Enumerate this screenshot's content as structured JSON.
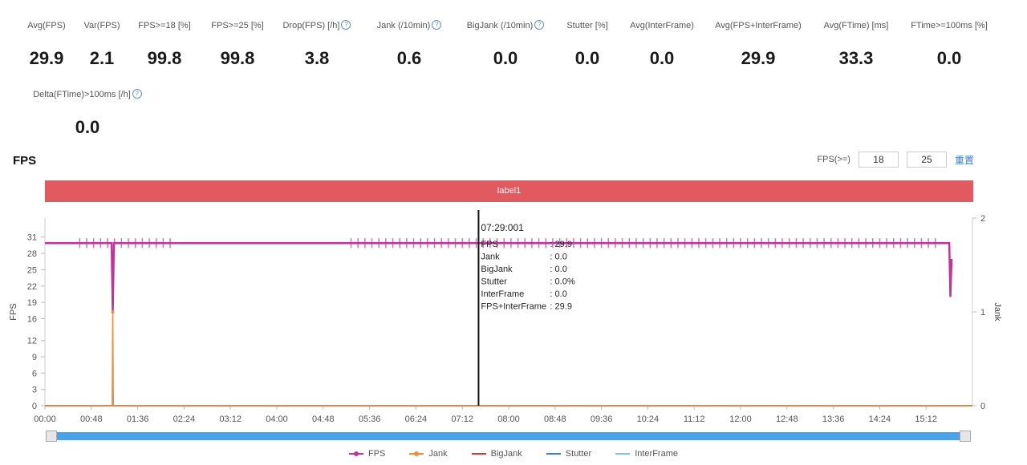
{
  "metrics": [
    {
      "label": "Avg(FPS)",
      "value": "29.9",
      "info": false
    },
    {
      "label": "Var(FPS)",
      "value": "2.1",
      "info": false
    },
    {
      "label": "FPS>=18 [%]",
      "value": "99.8",
      "info": false
    },
    {
      "label": "FPS>=25 [%]",
      "value": "99.8",
      "info": false
    },
    {
      "label": "Drop(FPS) [/h]",
      "value": "3.8",
      "info": true
    },
    {
      "label": "Jank (/10min)",
      "value": "0.6",
      "info": true
    },
    {
      "label": "BigJank (/10min)",
      "value": "0.0",
      "info": true
    },
    {
      "label": "Stutter [%]",
      "value": "0.0",
      "info": false
    },
    {
      "label": "Avg(InterFrame)",
      "value": "0.0",
      "info": false
    },
    {
      "label": "Avg(FPS+InterFrame)",
      "value": "29.9",
      "info": false
    },
    {
      "label": "Avg(FTime) [ms]",
      "value": "33.3",
      "info": false
    },
    {
      "label": "FTime>=100ms [%]",
      "value": "0.0",
      "info": false
    },
    {
      "label": "Delta(FTime)>100ms [/h]",
      "value": "0.0",
      "info": true
    }
  ],
  "chart_title": "FPS",
  "fps_threshold": {
    "label": "FPS(>=)",
    "low": "18",
    "high": "25",
    "reset_label": "重置"
  },
  "label_bar": "label1",
  "tooltip": {
    "time": "07:29:001",
    "rows": [
      {
        "name": "FPS",
        "value": ": 29.9"
      },
      {
        "name": "Jank",
        "value": ": 0.0"
      },
      {
        "name": "BigJank",
        "value": ": 0.0"
      },
      {
        "name": "Stutter",
        "value": ": 0.0%"
      },
      {
        "name": "InterFrame",
        "value": ": 0.0"
      },
      {
        "name": "FPS+InterFrame",
        "value": ": 29.9"
      }
    ]
  },
  "colors": {
    "fps": "#c0359c",
    "jank": "#f08c3c",
    "bigjank": "#d9383c",
    "stutter": "#3a7bd5",
    "interframe": "#7fc3e8",
    "label_bar": "#e05a5f",
    "slider": "#4aa3e8"
  },
  "chart_data": {
    "type": "line",
    "ylabel": "FPS",
    "y2label": "Jank",
    "y_ticks": [
      "0",
      "3",
      "6",
      "9",
      "12",
      "16",
      "19",
      "22",
      "25",
      "28",
      "31"
    ],
    "y2_ticks": [
      "0",
      "1",
      "2"
    ],
    "ylim": [
      0,
      34.5
    ],
    "y2lim": [
      0,
      2
    ],
    "x_ticks": [
      "00:00",
      "00:48",
      "01:36",
      "02:24",
      "03:12",
      "04:00",
      "04:48",
      "05:36",
      "06:24",
      "07:12",
      "08:00",
      "08:48",
      "09:36",
      "10:24",
      "11:12",
      "12:00",
      "12:48",
      "13:36",
      "14:24",
      "15:12"
    ],
    "xlim_minutes": [
      0,
      16
    ],
    "cursor_time_minutes": 7.48,
    "series": [
      {
        "name": "FPS",
        "points": [
          [
            0,
            29.9
          ],
          [
            1.15,
            29.9
          ],
          [
            1.17,
            17
          ],
          [
            1.19,
            29.9
          ],
          [
            15.6,
            29.9
          ],
          [
            15.62,
            20
          ],
          [
            15.64,
            27
          ]
        ]
      },
      {
        "name": "Jank",
        "points": [
          [
            0,
            0
          ],
          [
            1.16,
            0
          ],
          [
            1.17,
            1
          ],
          [
            1.18,
            0
          ],
          [
            16,
            0
          ]
        ]
      },
      {
        "name": "BigJank",
        "points": [
          [
            0,
            0
          ],
          [
            16,
            0
          ]
        ]
      },
      {
        "name": "Stutter",
        "points": [
          [
            0,
            0
          ],
          [
            16,
            0
          ]
        ]
      },
      {
        "name": "InterFrame",
        "points": [
          [
            0,
            0
          ],
          [
            16,
            0
          ]
        ]
      }
    ],
    "legend": [
      "FPS",
      "Jank",
      "BigJank",
      "Stutter",
      "InterFrame"
    ],
    "legend_position": "bottom",
    "grid": false
  }
}
